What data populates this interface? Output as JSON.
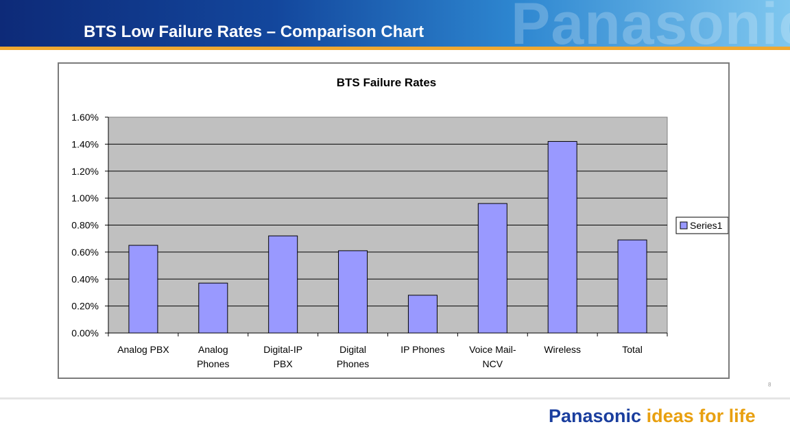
{
  "header": {
    "title": "BTS Low Failure Rates – Comparison Chart",
    "watermark": "Panasonic"
  },
  "footer": {
    "brand": "Panasonic",
    "tagline": "ideas for life",
    "page_number": "8"
  },
  "colors": {
    "bar_fill": "#9999ff",
    "plot_background": "#c0c0c0",
    "header_accent": "#f0a830"
  },
  "chart_data": {
    "type": "bar",
    "title": "BTS Failure Rates",
    "xlabel": "",
    "ylabel": "",
    "categories": [
      [
        "Analog PBX"
      ],
      [
        "Analog",
        "Phones"
      ],
      [
        "Digital-IP",
        "PBX"
      ],
      [
        "Digital",
        "Phones"
      ],
      [
        "IP Phones"
      ],
      [
        "Voice Mail-",
        "NCV"
      ],
      [
        "Wireless"
      ],
      [
        "Total"
      ]
    ],
    "series": [
      {
        "name": "Series1",
        "values": [
          0.65,
          0.37,
          0.72,
          0.61,
          0.28,
          0.96,
          1.42,
          0.69
        ]
      }
    ],
    "ylim": [
      0,
      1.6
    ],
    "yticks": [
      "0.00%",
      "0.20%",
      "0.40%",
      "0.60%",
      "0.80%",
      "1.00%",
      "1.20%",
      "1.40%",
      "1.60%"
    ],
    "value_unit": "%",
    "grid": true,
    "legend_position": "right"
  }
}
